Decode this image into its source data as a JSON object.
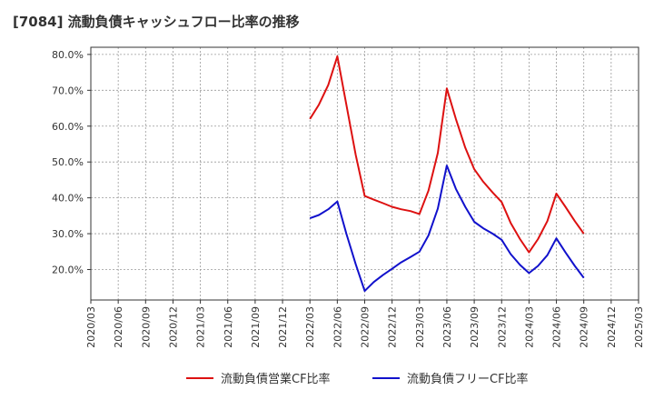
{
  "chart_data": {
    "type": "line",
    "title": "[7084]  流動負債キャッシュフロー比率の推移",
    "xlabel": "",
    "ylabel": "",
    "ylim": [
      11.5,
      82
    ],
    "yticks": [
      20,
      30,
      40,
      50,
      60,
      70,
      80
    ],
    "ytick_labels": [
      "20.0%",
      "30.0%",
      "40.0%",
      "50.0%",
      "60.0%",
      "70.0%",
      "80.0%"
    ],
    "x_tick_labels": [
      "2020/03",
      "2020/06",
      "2020/09",
      "2020/12",
      "2021/03",
      "2021/06",
      "2021/09",
      "2021/12",
      "2022/03",
      "2022/06",
      "2022/09",
      "2022/12",
      "2023/03",
      "2023/06",
      "2023/09",
      "2023/12",
      "2024/03",
      "2024/06",
      "2024/09",
      "2024/12",
      "2025/03"
    ],
    "grid": true,
    "legend_position": "bottom",
    "series": [
      {
        "name": "流動負債営業CF比率",
        "color": "#dd1111",
        "x_index": [
          8.0,
          8.33,
          8.67,
          9.0,
          9.33,
          9.67,
          10.0,
          10.33,
          10.67,
          11.0,
          11.33,
          11.67,
          12.0,
          12.33,
          12.67,
          13.0,
          13.33,
          13.67,
          14.0,
          14.33,
          14.67,
          15.0,
          15.33,
          15.67,
          16.0,
          16.33,
          16.67,
          17.0,
          17.33,
          17.67,
          18.0
        ],
        "values": [
          62,
          66,
          71.5,
          79.5,
          66,
          52,
          40.5,
          39.5,
          38.5,
          37.5,
          36.8,
          36.3,
          35.5,
          42,
          52.5,
          70.5,
          62,
          54,
          48,
          44.5,
          41.5,
          38.8,
          33,
          28.5,
          24.8,
          28.5,
          33.5,
          41.2,
          37.5,
          33.5,
          30
        ]
      },
      {
        "name": "流動負債フリーCF比率",
        "color": "#1111cc",
        "x_index": [
          8.0,
          8.33,
          8.67,
          9.0,
          9.33,
          9.67,
          10.0,
          10.33,
          10.67,
          11.0,
          11.33,
          11.67,
          12.0,
          12.33,
          12.67,
          13.0,
          13.33,
          13.67,
          14.0,
          14.33,
          14.67,
          15.0,
          15.33,
          15.67,
          16.0,
          16.33,
          16.67,
          17.0,
          17.33,
          17.67,
          18.0
        ],
        "values": [
          34.3,
          35.2,
          36.8,
          39,
          30,
          21.5,
          14,
          16.5,
          18.5,
          20.2,
          22,
          23.5,
          25,
          29.5,
          37,
          49,
          42.5,
          37.5,
          33.3,
          31.5,
          30,
          28.3,
          24.3,
          21.3,
          19,
          21,
          24,
          28.7,
          24.8,
          21,
          17.7
        ]
      }
    ]
  }
}
